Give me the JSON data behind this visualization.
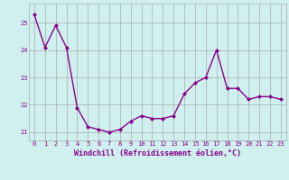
{
  "x": [
    0,
    1,
    2,
    3,
    4,
    5,
    6,
    7,
    8,
    9,
    10,
    11,
    12,
    13,
    14,
    15,
    16,
    17,
    18,
    19,
    20,
    21,
    22,
    23
  ],
  "y": [
    25.3,
    24.1,
    24.9,
    24.1,
    21.9,
    21.2,
    21.1,
    21.0,
    21.1,
    21.4,
    21.6,
    21.5,
    21.5,
    21.6,
    22.4,
    22.8,
    23.0,
    24.0,
    22.6,
    22.6,
    22.2,
    22.3,
    22.3,
    22.2
  ],
  "line_color": "#880088",
  "marker": "D",
  "markersize": 2,
  "bg_color": "#d0f0f0",
  "grid_color": "#aaaaaa",
  "xlabel": "Windchill (Refroidissement éolien,°C)",
  "xlim": [
    -0.5,
    23.5
  ],
  "ylim": [
    20.7,
    25.7
  ],
  "yticks": [
    21,
    22,
    23,
    24,
    25
  ],
  "xticks": [
    0,
    1,
    2,
    3,
    4,
    5,
    6,
    7,
    8,
    9,
    10,
    11,
    12,
    13,
    14,
    15,
    16,
    17,
    18,
    19,
    20,
    21,
    22,
    23
  ],
  "tick_fontsize": 5,
  "linewidth": 1.0,
  "xlabel_fontsize": 6
}
